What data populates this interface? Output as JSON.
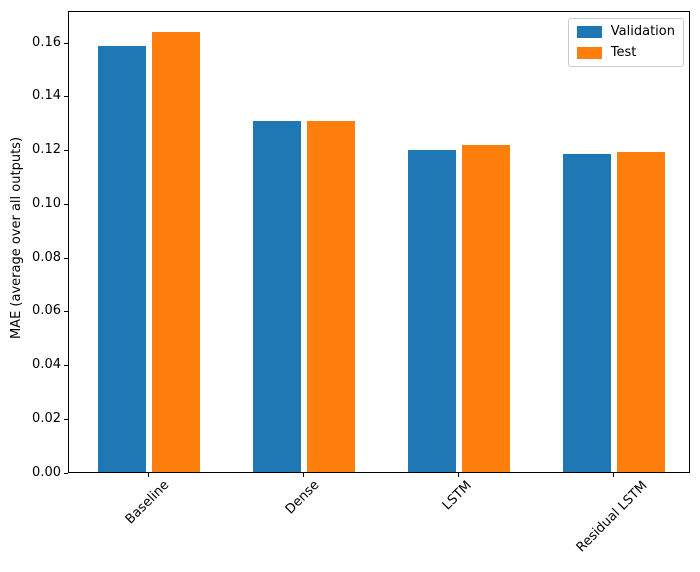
{
  "chart_data": {
    "type": "bar",
    "title": "",
    "categories": [
      "Baseline",
      "Dense",
      "LSTM",
      "Residual LSTM"
    ],
    "series": [
      {
        "name": "Validation",
        "color": "#1f77b4",
        "values": [
          0.159,
          0.131,
          0.1203,
          0.1186
        ]
      },
      {
        "name": "Test",
        "color": "#ff7f0e",
        "values": [
          0.164,
          0.1312,
          0.122,
          0.1196
        ]
      }
    ],
    "xlabel": "",
    "ylabel": "MAE (average over all outputs)",
    "ylim": [
      0,
      0.172
    ],
    "yticks": [
      0,
      0.02,
      0.04,
      0.06,
      0.08,
      0.1,
      0.12,
      0.14,
      0.16
    ],
    "ytick_labels": [
      "0.00",
      "0.02",
      "0.04",
      "0.06",
      "0.08",
      "0.10",
      "0.12",
      "0.14",
      "0.16"
    ],
    "xtick_rotation_deg": 45,
    "grid": false,
    "legend": {
      "position": "upper right"
    }
  }
}
